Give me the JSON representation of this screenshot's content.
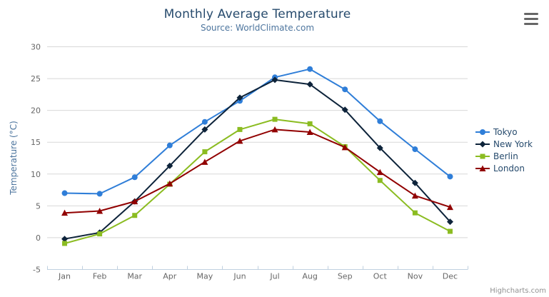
{
  "header": {
    "title": "Monthly Average Temperature",
    "subtitle": "Source: WorldClimate.com"
  },
  "credits": {
    "label": "Highcharts.com"
  },
  "icons": {
    "menu": "hamburger-icon"
  },
  "chart_data": {
    "type": "line",
    "title": "Monthly Average Temperature",
    "subtitle": "Source: WorldClimate.com",
    "categories": [
      "Jan",
      "Feb",
      "Mar",
      "Apr",
      "May",
      "Jun",
      "Jul",
      "Aug",
      "Sep",
      "Oct",
      "Nov",
      "Dec"
    ],
    "series": [
      {
        "name": "Tokyo",
        "color": "#2f7ed8",
        "marker": "circle",
        "values": [
          7.0,
          6.9,
          9.5,
          14.5,
          18.2,
          21.5,
          25.2,
          26.5,
          23.3,
          18.3,
          13.9,
          9.6
        ]
      },
      {
        "name": "New York",
        "color": "#0d233a",
        "marker": "diamond",
        "values": [
          -0.2,
          0.8,
          5.7,
          11.3,
          17.0,
          22.0,
          24.8,
          24.1,
          20.1,
          14.1,
          8.6,
          2.5
        ]
      },
      {
        "name": "Berlin",
        "color": "#8bbc21",
        "marker": "square",
        "values": [
          -0.9,
          0.6,
          3.5,
          8.4,
          13.5,
          17.0,
          18.6,
          17.9,
          14.3,
          9.0,
          3.9,
          1.0
        ]
      },
      {
        "name": "London",
        "color": "#910000",
        "marker": "triangle",
        "values": [
          3.9,
          4.2,
          5.7,
          8.5,
          11.9,
          15.2,
          17.0,
          16.6,
          14.2,
          10.3,
          6.6,
          4.8
        ]
      }
    ],
    "xlabel": "",
    "ylabel": "Temperature (°C)",
    "ylim": [
      -5,
      30
    ],
    "yticks": [
      -5,
      0,
      5,
      10,
      15,
      20,
      25,
      30
    ],
    "grid": "horizontal-only",
    "legend_position": "right"
  },
  "colors": {
    "title": "#274b6d",
    "subtitle": "#4d759e",
    "axis_labels": "#666666",
    "axis_title": "#4d759e",
    "grid_line": "#d8d8d8",
    "axis_line": "#c0d0e0",
    "legend_text": "#274b6d",
    "credits_text": "#909090",
    "background": "#ffffff"
  }
}
